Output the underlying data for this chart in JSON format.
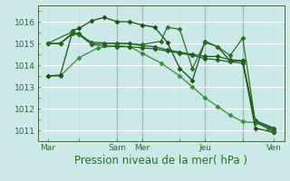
{
  "bg_color": "#cce8e8",
  "plot_bg_color": "#cce8e8",
  "grid_color_major_h": "#ffffff",
  "grid_color_major_v": "#bbdddd",
  "xlabel": "Pression niveau de la mer( hPa )",
  "xlabel_fontsize": 8.5,
  "tick_label_color": "#2a6e2a",
  "tick_label_fontsize": 6.5,
  "ylim": [
    1010.5,
    1016.75
  ],
  "yticks": [
    1011,
    1012,
    1013,
    1014,
    1015,
    1016
  ],
  "xlim": [
    -0.3,
    19.3
  ],
  "xtick_labels": [
    "Mar",
    "",
    "Sam",
    "Mer",
    "",
    "Jeu",
    "",
    "Ven"
  ],
  "xtick_positions": [
    0.5,
    3,
    6,
    8,
    11,
    13,
    16,
    18.5
  ],
  "series": [
    {
      "x": [
        0.5,
        1.5,
        3,
        4.5,
        6,
        7,
        8,
        9.5,
        11,
        12,
        13,
        14,
        15,
        16,
        17,
        18,
        18.5
      ],
      "y": [
        1013.5,
        1013.5,
        1014.35,
        1014.8,
        1014.9,
        1014.85,
        1014.55,
        1014.1,
        1013.5,
        1013.0,
        1012.5,
        1012.1,
        1011.7,
        1011.4,
        1011.35,
        1011.1,
        1010.9
      ],
      "color": "#3a8c3a",
      "marker": "D",
      "ms": 2.5,
      "lw": 0.9
    },
    {
      "x": [
        0.5,
        1.5,
        2.5,
        3,
        4,
        5,
        6,
        7,
        8,
        9,
        10,
        11,
        12,
        13,
        14,
        15,
        16,
        17,
        18.5
      ],
      "y": [
        1013.5,
        1013.55,
        1015.6,
        1015.7,
        1016.05,
        1016.2,
        1016.0,
        1016.0,
        1015.85,
        1015.75,
        1015.05,
        1013.85,
        1013.3,
        1015.1,
        1014.85,
        1014.2,
        1014.2,
        1011.1,
        1010.9
      ],
      "color": "#1a5010",
      "marker": "D",
      "ms": 2.5,
      "lw": 0.9
    },
    {
      "x": [
        0.5,
        1.5,
        2.5,
        3,
        4,
        5,
        6,
        7,
        8,
        9,
        10,
        11,
        12,
        13,
        14,
        15,
        16,
        17,
        18.5
      ],
      "y": [
        1015.0,
        1015.0,
        1015.5,
        1015.45,
        1015.0,
        1015.0,
        1015.0,
        1015.0,
        1014.9,
        1014.85,
        1014.7,
        1014.6,
        1014.5,
        1014.4,
        1014.4,
        1014.25,
        1014.2,
        1011.45,
        1011.1
      ],
      "color": "#1a5818",
      "marker": "D",
      "ms": 2.5,
      "lw": 0.9
    },
    {
      "x": [
        0.5,
        1.5,
        2.5,
        3,
        4,
        5,
        6,
        7,
        8,
        9,
        10,
        11,
        12,
        13,
        14,
        15,
        16,
        17,
        18.5
      ],
      "y": [
        1015.0,
        1015.0,
        1015.45,
        1015.4,
        1014.95,
        1014.9,
        1014.85,
        1014.85,
        1014.8,
        1014.75,
        1014.65,
        1014.55,
        1014.45,
        1014.3,
        1014.25,
        1014.15,
        1014.1,
        1011.4,
        1011.05
      ],
      "color": "#206020",
      "marker": "D",
      "ms": 2.5,
      "lw": 0.9
    },
    {
      "x": [
        0.5,
        2.5,
        4,
        6,
        8,
        9.5,
        10,
        11,
        12,
        13,
        14,
        15,
        16,
        17,
        18.5
      ],
      "y": [
        1015.0,
        1015.55,
        1015.05,
        1015.0,
        1014.95,
        1015.1,
        1015.75,
        1015.65,
        1013.85,
        1015.05,
        1014.85,
        1014.45,
        1015.25,
        1011.4,
        1010.95
      ],
      "color": "#2a7025",
      "marker": "D",
      "ms": 2.5,
      "lw": 0.9
    }
  ],
  "vline_positions": [
    6,
    8,
    13,
    16
  ],
  "vline_color": "#557766",
  "vline_lw": 0.8,
  "spine_color": "#446644"
}
